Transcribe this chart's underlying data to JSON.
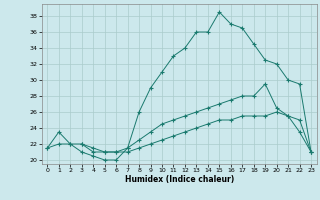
{
  "title": "",
  "xlabel": "Humidex (Indice chaleur)",
  "background_color": "#cce8ec",
  "grid_color": "#aacccc",
  "line_color": "#1a7a6e",
  "xlim": [
    -0.5,
    23.5
  ],
  "ylim": [
    19.5,
    39.5
  ],
  "xticks": [
    0,
    1,
    2,
    3,
    4,
    5,
    6,
    7,
    8,
    9,
    10,
    11,
    12,
    13,
    14,
    15,
    16,
    17,
    18,
    19,
    20,
    21,
    22,
    23
  ],
  "yticks": [
    20,
    22,
    24,
    26,
    28,
    30,
    32,
    34,
    36,
    38
  ],
  "series1_x": [
    0,
    1,
    2,
    3,
    4,
    5,
    6,
    7,
    8,
    9,
    10,
    11,
    12,
    13,
    14,
    15,
    16,
    17,
    18,
    19,
    20,
    21,
    22,
    23
  ],
  "series1_y": [
    21.5,
    23.5,
    22.0,
    21.0,
    20.5,
    20.0,
    20.0,
    21.5,
    26.0,
    29.0,
    31.0,
    33.0,
    34.0,
    36.0,
    36.0,
    38.5,
    37.0,
    36.5,
    34.5,
    32.5,
    32.0,
    30.0,
    29.5,
    21.0
  ],
  "series2_x": [
    0,
    1,
    2,
    3,
    4,
    5,
    6,
    7,
    8,
    9,
    10,
    11,
    12,
    13,
    14,
    15,
    16,
    17,
    18,
    19,
    20,
    21,
    22,
    23
  ],
  "series2_y": [
    21.5,
    22.0,
    22.0,
    22.0,
    21.0,
    21.0,
    21.0,
    21.0,
    21.5,
    22.0,
    22.5,
    23.0,
    23.5,
    24.0,
    24.5,
    25.0,
    25.0,
    25.5,
    25.5,
    25.5,
    26.0,
    25.5,
    25.0,
    21.0
  ],
  "series3_x": [
    3,
    4,
    5,
    6,
    7,
    8,
    9,
    10,
    11,
    12,
    13,
    14,
    15,
    16,
    17,
    18,
    19,
    20,
    21,
    22,
    23
  ],
  "series3_y": [
    22.0,
    21.5,
    21.0,
    21.0,
    21.5,
    22.5,
    23.5,
    24.5,
    25.0,
    25.5,
    26.0,
    26.5,
    27.0,
    27.5,
    28.0,
    28.0,
    29.5,
    26.5,
    25.5,
    23.5,
    21.0
  ]
}
